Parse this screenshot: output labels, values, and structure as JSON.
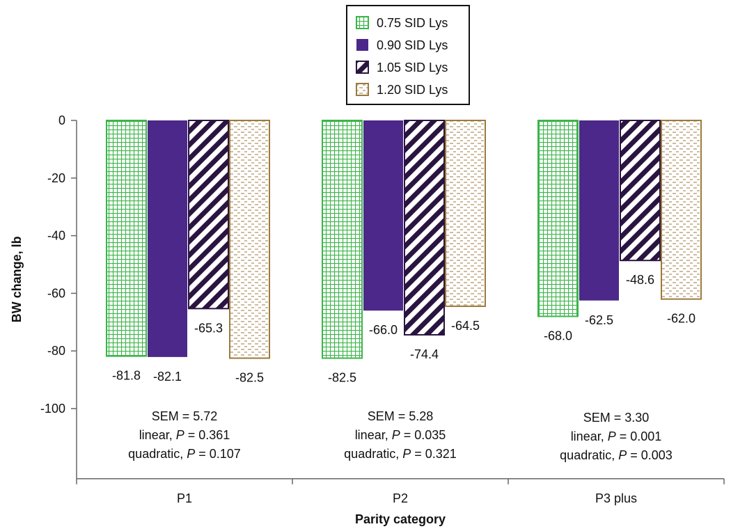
{
  "chart_data": {
    "type": "bar",
    "categories": [
      "P1",
      "P2",
      "P3 plus"
    ],
    "series": [
      {
        "name": "0.75 SID Lys",
        "values": [
          -81.8,
          -82.5,
          -68.0
        ],
        "color": "#3cb54a",
        "pattern": "grid"
      },
      {
        "name": "0.90 SID Lys",
        "values": [
          -82.1,
          -66.0,
          -62.5
        ],
        "color": "#4b2889",
        "pattern": "solid"
      },
      {
        "name": "1.05 SID Lys",
        "values": [
          -65.3,
          -74.4,
          -48.6
        ],
        "color": "#2a1440",
        "pattern": "diagonal"
      },
      {
        "name": "1.20 SID Lys",
        "values": [
          -82.5,
          -64.5,
          -62.0
        ],
        "color": "#9c7a3c",
        "pattern": "dashes"
      }
    ],
    "value_labels": [
      [
        "-81.8",
        "-82.1",
        "-65.3",
        "-82.5"
      ],
      [
        "-82.5",
        "-66.0",
        "-74.4",
        "-64.5"
      ],
      [
        "-68.0",
        "-62.5",
        "-48.6",
        "-62.0"
      ]
    ],
    "stats": [
      {
        "sem": "SEM = 5.72",
        "linear_prefix": "linear, ",
        "linear_p": "P",
        "linear_value": " = 0.361",
        "quad_prefix": "quadratic, ",
        "quad_p": "P",
        "quad_value": " = 0.107"
      },
      {
        "sem": "SEM = 5.28",
        "linear_prefix": "linear, ",
        "linear_p": "P",
        "linear_value": " = 0.035",
        "quad_prefix": "quadratic, ",
        "quad_p": "P",
        "quad_value": " = 0.321"
      },
      {
        "sem": "SEM = 3.30",
        "linear_prefix": "linear, ",
        "linear_p": "P",
        "linear_value": " = 0.001",
        "quad_prefix": "quadratic, ",
        "quad_p": "P",
        "quad_value": " = 0.003"
      }
    ],
    "xlabel": "Parity category",
    "ylabel": "BW change, lb",
    "ylim": [
      -120,
      0
    ],
    "yticks": [
      0,
      -20,
      -40,
      -60,
      -80,
      -100
    ],
    "ytick_labels": [
      "0",
      "-20",
      "-40",
      "-60",
      "-80",
      "-100"
    ],
    "grid": false,
    "legend_position": "top-center"
  }
}
